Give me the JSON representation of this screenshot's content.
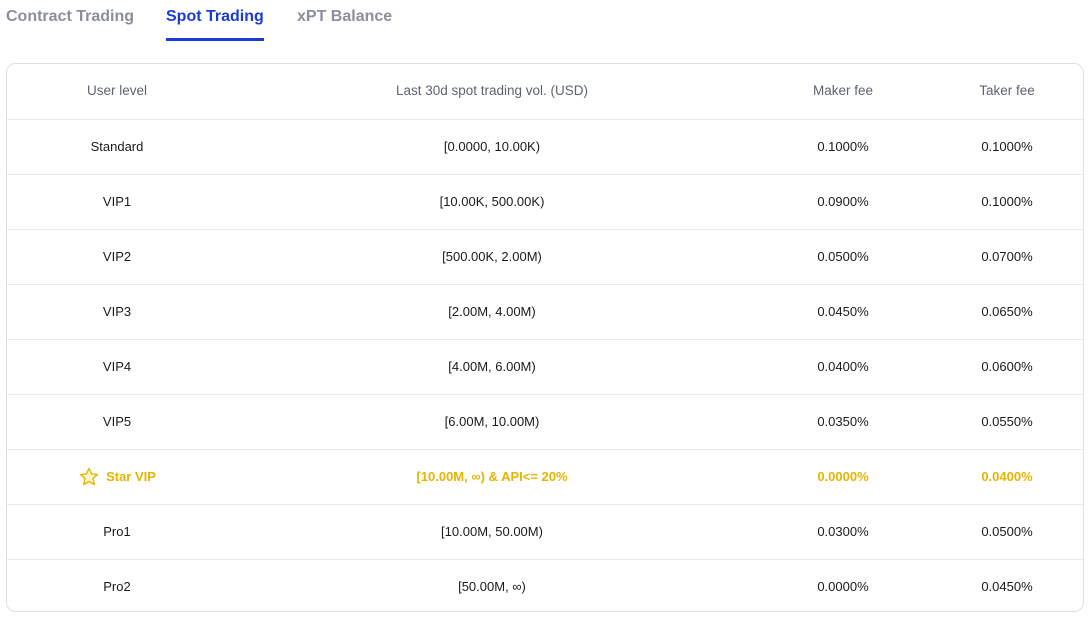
{
  "tabs": [
    {
      "label": "Contract Trading",
      "active": false
    },
    {
      "label": "Spot Trading",
      "active": true
    },
    {
      "label": "xPT Balance",
      "active": false
    }
  ],
  "table": {
    "headers": {
      "level": "User level",
      "volume": "Last 30d spot trading vol. (USD)",
      "maker": "Maker fee",
      "taker": "Taker fee"
    },
    "rows": [
      {
        "level": "Standard",
        "volume": "[0.0000, 10.00K)",
        "maker": "0.1000%",
        "taker": "0.1000%"
      },
      {
        "level": "VIP1",
        "volume": "[10.00K, 500.00K)",
        "maker": "0.0900%",
        "taker": "0.1000%"
      },
      {
        "level": "VIP2",
        "volume": "[500.00K, 2.00M)",
        "maker": "0.0500%",
        "taker": "0.0700%"
      },
      {
        "level": "VIP3",
        "volume": "[2.00M, 4.00M)",
        "maker": "0.0450%",
        "taker": "0.0650%"
      },
      {
        "level": "VIP4",
        "volume": "[4.00M, 6.00M)",
        "maker": "0.0400%",
        "taker": "0.0600%"
      },
      {
        "level": "VIP5",
        "volume": "[6.00M, 10.00M)",
        "maker": "0.0350%",
        "taker": "0.0550%"
      },
      {
        "level": "Star VIP",
        "volume": "[10.00M, ∞) & API<= 20%",
        "maker": "0.0000%",
        "taker": "0.0400%",
        "icon": "star-icon"
      },
      {
        "level": "Pro1",
        "volume": "[10.00M, 50.00M)",
        "maker": "0.0300%",
        "taker": "0.0500%"
      },
      {
        "level": "Pro2",
        "volume": "[50.00M, ∞)",
        "maker": "0.0000%",
        "taker": "0.0450%"
      }
    ]
  },
  "colors": {
    "accent": "#1a3bd6",
    "highlight": "#e8b400",
    "inactive_tab": "#8a8f99"
  }
}
